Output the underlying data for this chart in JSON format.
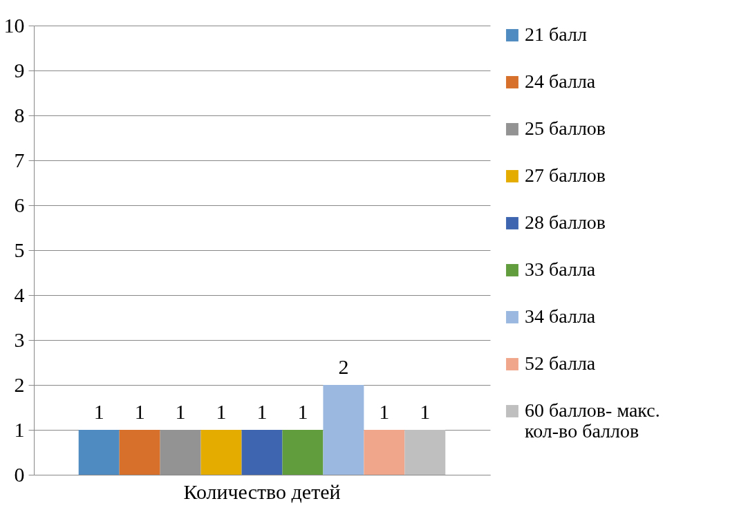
{
  "chart_data": {
    "type": "bar",
    "categories": [
      "Количество детей"
    ],
    "series": [
      {
        "name": "21 балл",
        "color": "#4f8bc0",
        "values": [
          1
        ]
      },
      {
        "name": "24 балла",
        "color": "#d6702b",
        "values": [
          1
        ]
      },
      {
        "name": "25 баллов",
        "color": "#939393",
        "values": [
          1
        ]
      },
      {
        "name": "27 баллов",
        "color": "#e5ac00",
        "values": [
          1
        ]
      },
      {
        "name": "28 баллов",
        "color": "#3d65b0",
        "values": [
          1
        ]
      },
      {
        "name": "33 балла",
        "color": "#619c3d",
        "values": [
          1
        ]
      },
      {
        "name": "34 балла",
        "color": "#9ab8e0",
        "values": [
          2
        ]
      },
      {
        "name": "52 балла",
        "color": "#f0a68a",
        "values": [
          1
        ]
      },
      {
        "name": "60 баллов- макс. кол-во баллов",
        "color": "#bfbfbf",
        "values": [
          1
        ]
      }
    ],
    "ylim": [
      0,
      10
    ],
    "yticks": [
      0,
      1,
      2,
      3,
      4,
      5,
      6,
      7,
      8,
      9,
      10
    ],
    "grid": "y",
    "legend": "right",
    "data_labels": true
  }
}
